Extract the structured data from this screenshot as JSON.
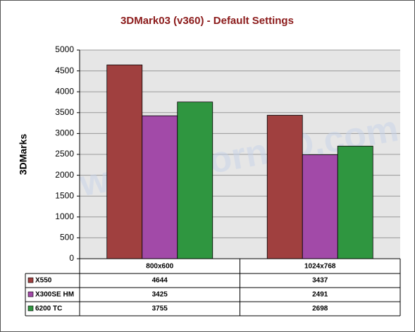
{
  "chart_data": {
    "type": "bar",
    "title": "3DMark03 (v360) - Default Settings",
    "y_label": "3DMarks",
    "watermark": "www.Bjorn3D.com",
    "categories": [
      "800x600",
      "1024x768"
    ],
    "series": [
      {
        "name": "X550",
        "color": "#a0403f",
        "values": [
          4644,
          3437
        ]
      },
      {
        "name": "X300SE HM",
        "color": "#a24aa8",
        "values": [
          3425,
          2491
        ]
      },
      {
        "name": "6200 TC",
        "color": "#2f9640",
        "values": [
          3755,
          2698
        ]
      }
    ],
    "ylim": [
      0,
      5000
    ],
    "yticks": [
      0,
      500,
      1000,
      1500,
      2000,
      2500,
      3000,
      3500,
      4000,
      4500,
      5000
    ],
    "grid": true
  }
}
